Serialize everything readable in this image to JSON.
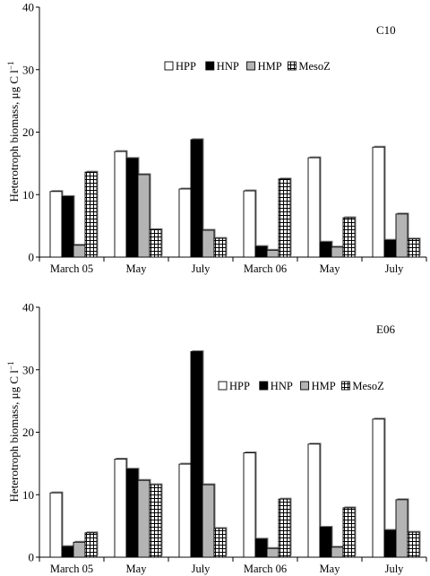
{
  "chart_data": [
    {
      "type": "bar",
      "panel_label": "C10",
      "ylabel": "Heterotroph biomass, μg C l",
      "ylabel_superscript": "−1",
      "ylim": [
        0,
        40
      ],
      "yticks": [
        "0",
        "10",
        "20",
        "30",
        "40"
      ],
      "categories": [
        "March 05",
        "May",
        "July",
        "March 06",
        "May",
        "July"
      ],
      "series": [
        {
          "name": "HPP",
          "values": [
            10.5,
            16.9,
            10.9,
            10.6,
            15.9,
            17.6
          ]
        },
        {
          "name": "HNP",
          "values": [
            9.7,
            15.8,
            18.8,
            1.7,
            2.4,
            2.7
          ]
        },
        {
          "name": "HMP",
          "values": [
            1.9,
            13.2,
            4.3,
            1.1,
            1.6,
            6.9
          ]
        },
        {
          "name": "MesoZ",
          "values": [
            13.6,
            4.4,
            3.0,
            12.5,
            6.3,
            2.9
          ]
        }
      ],
      "legend_position": "top-right",
      "grid": false
    },
    {
      "type": "bar",
      "panel_label": "E06",
      "ylabel": "Heterotroph biomass, μg C l",
      "ylabel_superscript": "−1",
      "ylim": [
        0,
        40
      ],
      "yticks": [
        "0",
        "10",
        "20",
        "30",
        "40"
      ],
      "categories": [
        "March 05",
        "May",
        "July",
        "March 06",
        "May",
        "July"
      ],
      "series": [
        {
          "name": "HPP",
          "values": [
            10.3,
            15.7,
            14.9,
            16.7,
            18.1,
            22.1
          ]
        },
        {
          "name": "HNP",
          "values": [
            1.7,
            14.1,
            32.9,
            2.9,
            4.8,
            4.3
          ]
        },
        {
          "name": "HMP",
          "values": [
            2.4,
            12.3,
            11.6,
            1.4,
            1.6,
            9.2
          ]
        },
        {
          "name": "MesoZ",
          "values": [
            3.9,
            11.6,
            4.6,
            9.3,
            7.9,
            4.0
          ]
        }
      ],
      "legend_position": "top-right",
      "grid": false
    }
  ]
}
